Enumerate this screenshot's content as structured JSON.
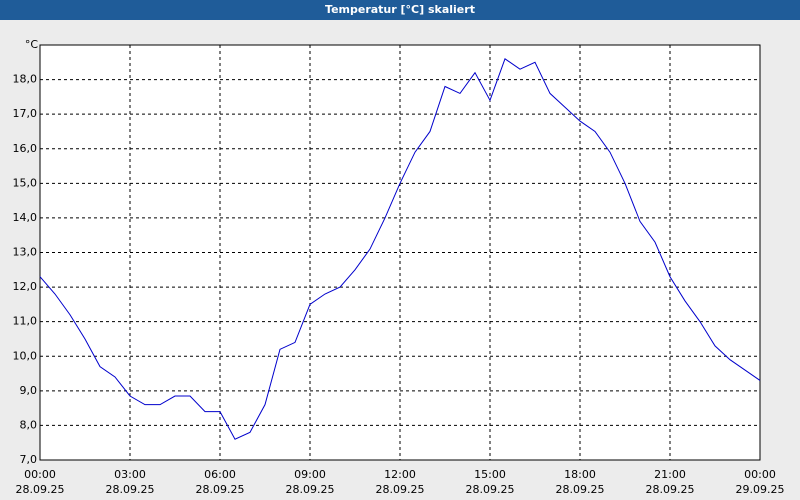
{
  "chart_data": {
    "type": "line",
    "title": "Temperatur [°C] skaliert",
    "y_unit": "°C",
    "x": [
      0,
      0.5,
      1,
      1.5,
      2,
      2.5,
      3,
      3.5,
      4,
      4.5,
      5,
      5.5,
      6,
      6.5,
      7,
      7.5,
      8,
      8.5,
      9,
      9.5,
      10,
      10.5,
      11,
      11.5,
      12,
      12.5,
      13,
      13.5,
      14,
      14.5,
      15,
      15.5,
      16,
      16.5,
      17,
      17.5,
      18,
      18.5,
      19,
      19.5,
      20,
      20.5,
      21,
      21.5,
      22,
      22.5,
      23,
      23.5,
      24
    ],
    "series": [
      {
        "name": "Temperatur",
        "color": "#0000cc",
        "values": [
          12.3,
          11.8,
          11.2,
          10.5,
          9.7,
          9.4,
          8.85,
          8.6,
          8.6,
          8.85,
          8.85,
          8.4,
          8.4,
          7.6,
          7.8,
          8.6,
          10.2,
          10.4,
          11.5,
          11.8,
          12.0,
          12.5,
          13.1,
          14.0,
          15.0,
          15.9,
          16.5,
          17.8,
          17.6,
          18.2,
          17.4,
          18.6,
          18.3,
          18.5,
          17.6,
          17.2,
          16.8,
          16.5,
          15.9,
          15.0,
          13.9,
          13.3,
          12.3,
          11.6,
          11.0,
          10.3,
          9.9,
          9.6,
          9.3
        ]
      }
    ],
    "xlim": [
      0,
      24
    ],
    "xticks": [
      {
        "value": 0,
        "label": "00:00",
        "date": "28.09.25"
      },
      {
        "value": 3,
        "label": "03:00",
        "date": "28.09.25"
      },
      {
        "value": 6,
        "label": "06:00",
        "date": "28.09.25"
      },
      {
        "value": 9,
        "label": "09:00",
        "date": "28.09.25"
      },
      {
        "value": 12,
        "label": "12:00",
        "date": "28.09.25"
      },
      {
        "value": 15,
        "label": "15:00",
        "date": "28.09.25"
      },
      {
        "value": 18,
        "label": "18:00",
        "date": "28.09.25"
      },
      {
        "value": 21,
        "label": "21:00",
        "date": "28.09.25"
      },
      {
        "value": 24,
        "label": "00:00",
        "date": "29.09.25"
      }
    ],
    "ylim": [
      7,
      19
    ],
    "yticks": [
      {
        "value": 7,
        "label": "7,0"
      },
      {
        "value": 8,
        "label": "8,0"
      },
      {
        "value": 9,
        "label": "9,0"
      },
      {
        "value": 10,
        "label": "10,0"
      },
      {
        "value": 11,
        "label": "11,0"
      },
      {
        "value": 12,
        "label": "12,0"
      },
      {
        "value": 13,
        "label": "13,0"
      },
      {
        "value": 14,
        "label": "14,0"
      },
      {
        "value": 15,
        "label": "15,0"
      },
      {
        "value": 16,
        "label": "16,0"
      },
      {
        "value": 17,
        "label": "17,0"
      },
      {
        "value": 18,
        "label": "18,0"
      }
    ],
    "grid": true
  }
}
